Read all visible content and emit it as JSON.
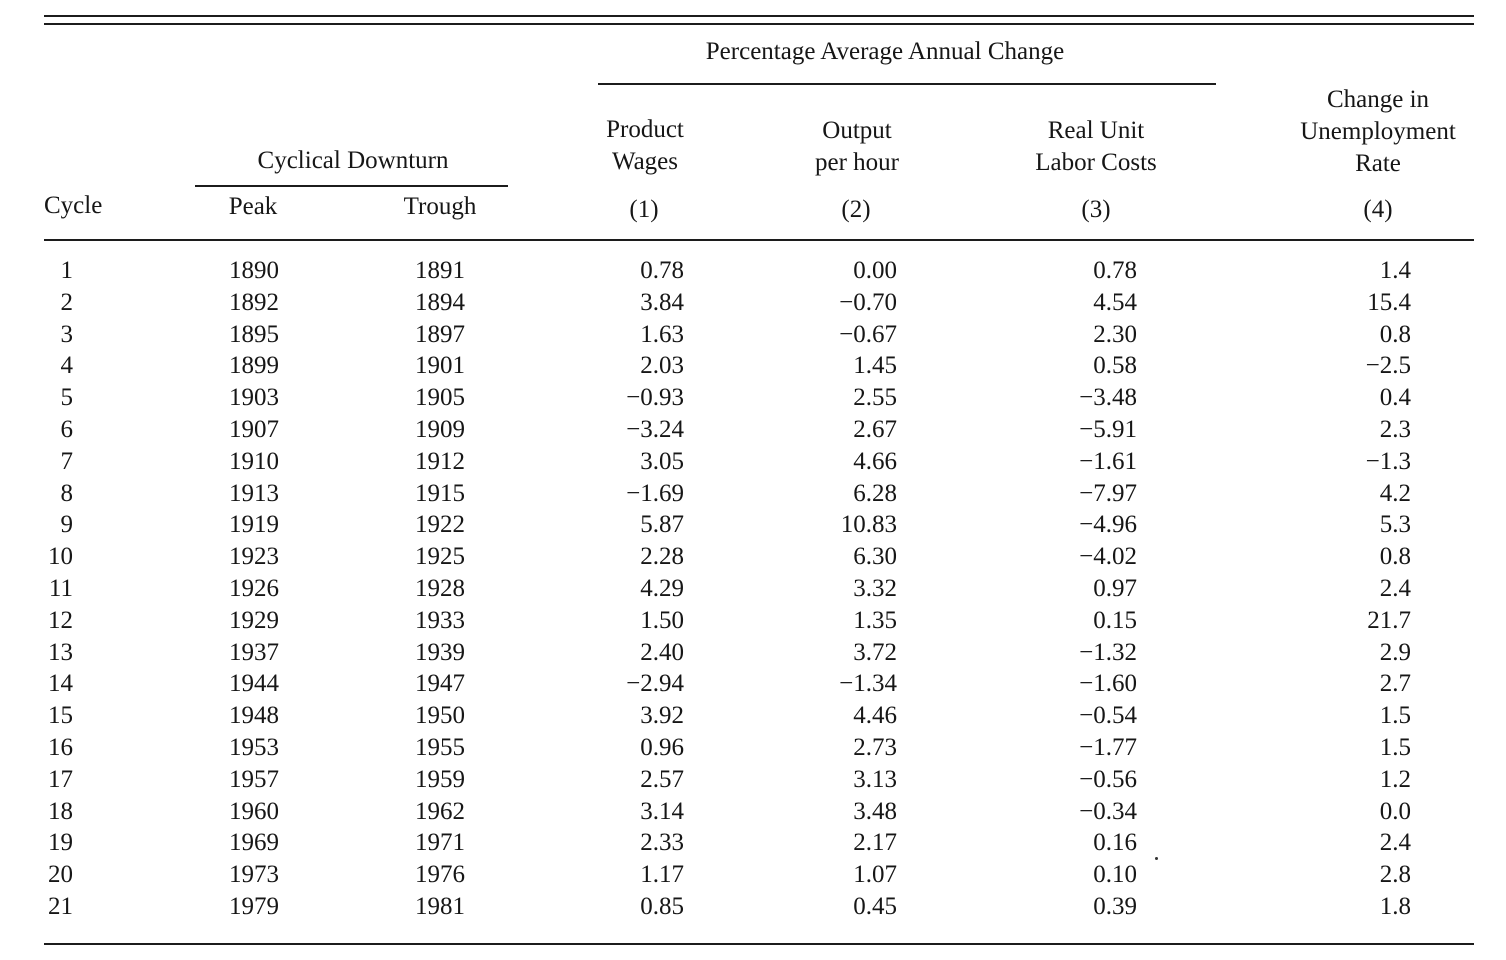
{
  "table": {
    "group_header": "Percentage Average Annual Change",
    "subgroup_header": "Cyclical Downturn",
    "columns": {
      "cycle": "Cycle",
      "peak": "Peak",
      "trough": "Trough",
      "product_wages": [
        "Product",
        "Wages"
      ],
      "output_per_hour": [
        "Output",
        "per hour"
      ],
      "real_unit_labor_costs": [
        "Real Unit",
        "Labor Costs"
      ],
      "unemployment_change": [
        "Change in",
        "Unemployment",
        "Rate"
      ]
    },
    "column_numbers": [
      "(1)",
      "(2)",
      "(3)",
      "(4)"
    ],
    "rows": [
      [
        "1",
        "1890",
        "1891",
        "0.78",
        "0.00",
        "0.78",
        "1.4"
      ],
      [
        "2",
        "1892",
        "1894",
        "3.84",
        "−0.70",
        "4.54",
        "15.4"
      ],
      [
        "3",
        "1895",
        "1897",
        "1.63",
        "−0.67",
        "2.30",
        "0.8"
      ],
      [
        "4",
        "1899",
        "1901",
        "2.03",
        "1.45",
        "0.58",
        "−2.5"
      ],
      [
        "5",
        "1903",
        "1905",
        "−0.93",
        "2.55",
        "−3.48",
        "0.4"
      ],
      [
        "6",
        "1907",
        "1909",
        "−3.24",
        "2.67",
        "−5.91",
        "2.3"
      ],
      [
        "7",
        "1910",
        "1912",
        "3.05",
        "4.66",
        "−1.61",
        "−1.3"
      ],
      [
        "8",
        "1913",
        "1915",
        "−1.69",
        "6.28",
        "−7.97",
        "4.2"
      ],
      [
        "9",
        "1919",
        "1922",
        "5.87",
        "10.83",
        "−4.96",
        "5.3"
      ],
      [
        "10",
        "1923",
        "1925",
        "2.28",
        "6.30",
        "−4.02",
        "0.8"
      ],
      [
        "11",
        "1926",
        "1928",
        "4.29",
        "3.32",
        "0.97",
        "2.4"
      ],
      [
        "12",
        "1929",
        "1933",
        "1.50",
        "1.35",
        "0.15",
        "21.7"
      ],
      [
        "13",
        "1937",
        "1939",
        "2.40",
        "3.72",
        "−1.32",
        "2.9"
      ],
      [
        "14",
        "1944",
        "1947",
        "−2.94",
        "−1.34",
        "−1.60",
        "2.7"
      ],
      [
        "15",
        "1948",
        "1950",
        "3.92",
        "4.46",
        "−0.54",
        "1.5"
      ],
      [
        "16",
        "1953",
        "1955",
        "0.96",
        "2.73",
        "−1.77",
        "1.5"
      ],
      [
        "17",
        "1957",
        "1959",
        "2.57",
        "3.13",
        "−0.56",
        "1.2"
      ],
      [
        "18",
        "1960",
        "1962",
        "3.14",
        "3.48",
        "−0.34",
        "0.0"
      ],
      [
        "19",
        "1969",
        "1971",
        "2.33",
        "2.17",
        "0.16",
        "2.4"
      ],
      [
        "20",
        "1973",
        "1976",
        "1.17",
        "1.07",
        "0.10",
        "2.8"
      ],
      [
        "21",
        "1979",
        "1981",
        "0.85",
        "0.45",
        "0.39",
        "1.8"
      ]
    ]
  }
}
